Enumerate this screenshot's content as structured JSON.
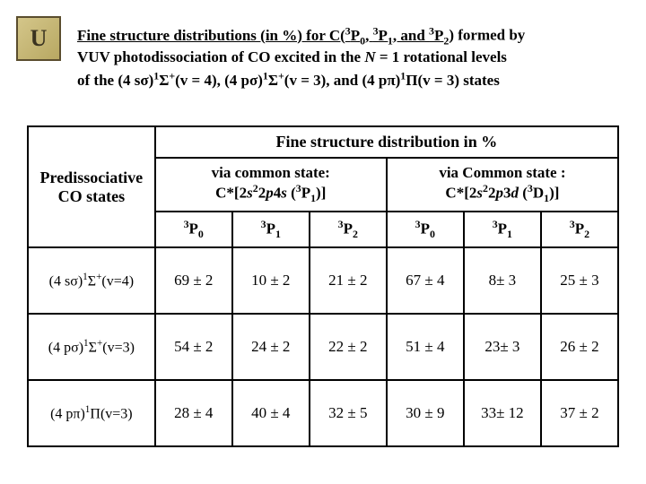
{
  "logo_letter": "U",
  "title": {
    "lead": "Fine structure distributions (in %) for C(",
    "sup1_pre": "3",
    "p0": "P",
    "sub0": "0",
    "sep1": ", ",
    "sup2_pre": "3",
    "p1": "P",
    "sub1": "1",
    "sep2": ", and ",
    "sup3_pre": "3",
    "p2": "P",
    "sub2": "2",
    "after_terms": ") formed by",
    "line2_a": "VUV photodissociation of CO excited in the ",
    "line2_N": "N",
    "line2_b": " = 1 rotational levels",
    "line3_a": "of the (4 sσ)",
    "line3_s1": "1",
    "line3_sig1": "Σ",
    "line3_plus1": "+",
    "line3_b": "(v = 4), (4 pσ)",
    "line3_s2": "1",
    "line3_sig2": "Σ",
    "line3_plus2": "+",
    "line3_c": "(v = 3), and (4 pπ)",
    "line3_s3": "1",
    "line3_pi": "Π",
    "line3_d": "(v = 3) states"
  },
  "headers": {
    "col_states_a": "Predissociative",
    "col_states_b": "CO states",
    "fine_struct": "Fine structure distribution in %",
    "via1_a": "via common state:",
    "via2_a": "via Common state :",
    "cstar": "C*[2",
    "s2": "s",
    "s2sup": "2",
    "twop": "2",
    "p": "p",
    "four": "4",
    "s": "s",
    "three": "3",
    "P": "P",
    "one_sub": "1",
    "br_close": ")]",
    "threeD": "3",
    "dD": "d",
    "D": "D",
    "p3d": "3",
    "col_3P0_sup": "3",
    "col_3P0_P": "P",
    "col_3P0_sub": "0",
    "col_3P1_sup": "3",
    "col_3P1_P": "P",
    "col_3P1_sub": "1",
    "col_3P2_sup": "3",
    "col_3P2_P": "P",
    "col_3P2_sub": "2"
  },
  "rows": [
    {
      "label_a": "(4 sσ)1Σ+(v=4)",
      "label": "(4 sσ)",
      "ls1": "1",
      "lsig": "Σ",
      "lplus": "+",
      "ltail": "(v=4)",
      "v": [
        "69 ± 2",
        "10 ± 2",
        "21 ± 2",
        "67 ± 4",
        "8± 3",
        "25 ± 3"
      ]
    },
    {
      "label": "(4 pσ)",
      "ls1": "1",
      "lsig": "Σ",
      "lplus": "+",
      "ltail": "(v=3)",
      "v": [
        "54 ± 2",
        "24 ± 2",
        "22 ± 2",
        "51 ± 4",
        "23± 3",
        "26 ± 2"
      ]
    },
    {
      "label": "(4 pπ)",
      "ls1": "1",
      "lsig": "Π",
      "lplus": "",
      "ltail": "(v=3)",
      "v": [
        "28 ± 4",
        "40 ± 4",
        "32 ± 5",
        "30 ± 9",
        "33± 12",
        "37 ± 2"
      ]
    }
  ]
}
